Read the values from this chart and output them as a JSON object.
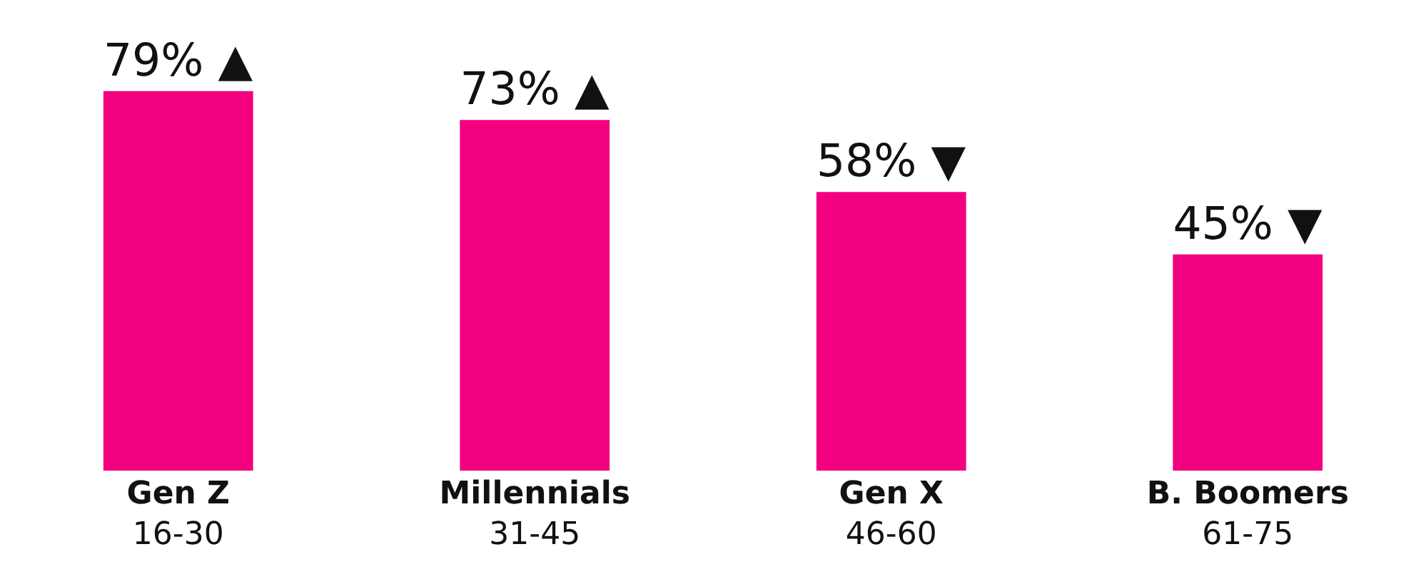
{
  "chart_data": {
    "type": "bar",
    "categories": [
      "Gen Z\n16-30",
      "Millennials\n31-45",
      "Gen X\n46-60",
      "B. Boomers\n61-75"
    ],
    "values": [
      79,
      73,
      58,
      45
    ],
    "value_labels": [
      "79% ▲",
      "73% ▲",
      "58% ▼",
      "45% ▼"
    ],
    "color": "#f2007f"
  }
}
